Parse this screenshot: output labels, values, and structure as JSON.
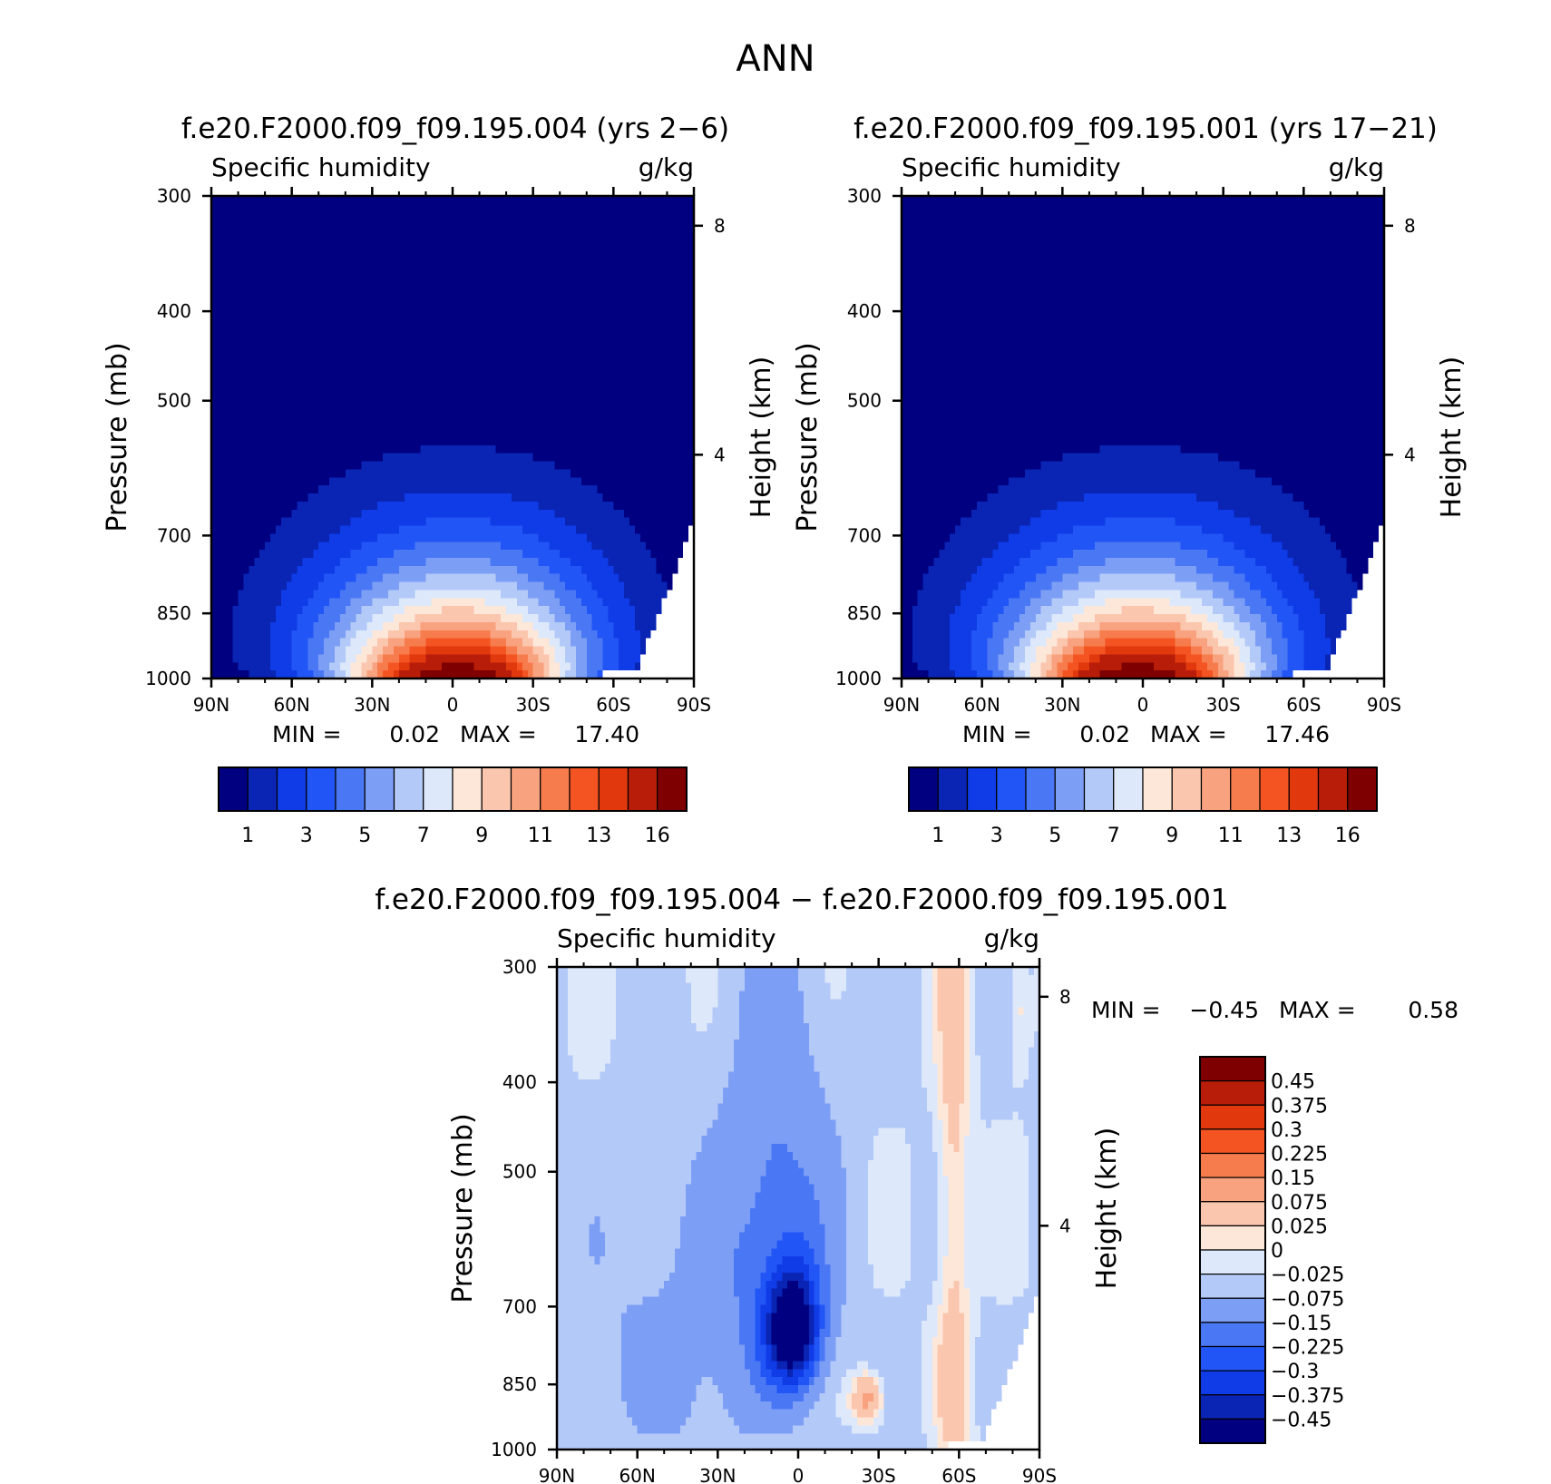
{
  "figure_title": "ANN",
  "chart_data": [
    {
      "type": "heatmap",
      "title": "f.e20.F2000.f09_f09.195.004 (yrs 2−6)",
      "left_string": "Specific humidity",
      "right_string": "g/kg",
      "ylabel": "Pressure (mb)",
      "ylabel_right": "Height (km)",
      "x_ticks": [
        "90N",
        "60N",
        "30N",
        "0",
        "30S",
        "60S",
        "90S"
      ],
      "y_ticks": [
        "300",
        "400",
        "500",
        "700",
        "850",
        "1000"
      ],
      "y_ticks_right": [
        "8",
        "4"
      ],
      "xlim": [
        90,
        -90
      ],
      "ylim": [
        1000,
        300
      ],
      "min_label": "MIN =",
      "min_value": "0.02",
      "max_label": "MAX =",
      "max_value": "17.40",
      "peak": {
        "lat": -2,
        "p_lo": 400,
        "w_lo": 14,
        "w_hi": 56,
        "shift_hi": -10,
        "asym_s": 1.05,
        "max": 17.4
      },
      "colorbar_labels": [
        "1",
        "3",
        "5",
        "7",
        "9",
        "11",
        "13",
        "16"
      ]
    },
    {
      "type": "heatmap",
      "title": "f.e20.F2000.f09_f09.195.001 (yrs 17−21)",
      "left_string": "Specific humidity",
      "right_string": "g/kg",
      "ylabel": "Pressure (mb)",
      "ylabel_right": "Height (km)",
      "x_ticks": [
        "90N",
        "60N",
        "30N",
        "0",
        "30S",
        "60S",
        "90S"
      ],
      "y_ticks": [
        "300",
        "400",
        "500",
        "700",
        "850",
        "1000"
      ],
      "y_ticks_right": [
        "8",
        "4"
      ],
      "xlim": [
        90,
        -90
      ],
      "ylim": [
        1000,
        300
      ],
      "min_label": "MIN =",
      "min_value": "0.02",
      "max_label": "MAX =",
      "max_value": "17.46",
      "peak": {
        "lat": 2,
        "p_lo": 400,
        "w_lo": 14,
        "w_hi": 56,
        "shift_hi": -10,
        "asym_s": 1.0,
        "max": 17.46
      },
      "colorbar_labels": [
        "1",
        "3",
        "5",
        "7",
        "9",
        "11",
        "13",
        "16"
      ]
    },
    {
      "type": "heatmap",
      "title": "f.e20.F2000.f09_f09.195.004 − f.e20.F2000.f09_f09.195.001",
      "left_string": "Specific humidity",
      "right_string": "g/kg",
      "ylabel": "Pressure (mb)",
      "ylabel_right": "Height (km)",
      "x_ticks": [
        "90N",
        "60N",
        "30N",
        "0",
        "30S",
        "60S",
        "90S"
      ],
      "y_ticks": [
        "300",
        "400",
        "500",
        "700",
        "850",
        "1000"
      ],
      "y_ticks_right": [
        "8",
        "4"
      ],
      "xlim": [
        90,
        -90
      ],
      "ylim": [
        1000,
        300
      ],
      "min_label": "MIN =",
      "min_value": "−0.45",
      "max_label": "MAX =",
      "max_value": "0.58",
      "colorbar_labels": [
        "0.45",
        "0.375",
        "0.3",
        "0.225",
        "0.15",
        "0.075",
        "0.025",
        "0",
        "−0.025",
        "−0.075",
        "−0.15",
        "−0.225",
        "−0.3",
        "−0.375",
        "−0.45"
      ]
    }
  ],
  "colormap_abs": [
    "#000080",
    "#0a24b4",
    "#0f3ce6",
    "#2255f5",
    "#4a78f5",
    "#7d9ef5",
    "#b3c9f8",
    "#dde8fa",
    "#fde7d9",
    "#fbc6ae",
    "#f8a27f",
    "#f77c4d",
    "#f35422",
    "#e1380e",
    "#b71d09",
    "#7f0000"
  ],
  "colormap_diff": [
    "#7f0000",
    "#b71d09",
    "#e1380e",
    "#f35422",
    "#f77c4d",
    "#f8a27f",
    "#fbc6ae",
    "#fde7d9",
    "#dde8fa",
    "#b3c9f8",
    "#7d9ef5",
    "#4a78f5",
    "#2255f5",
    "#0f3ce6",
    "#0a24b4",
    "#000080"
  ]
}
